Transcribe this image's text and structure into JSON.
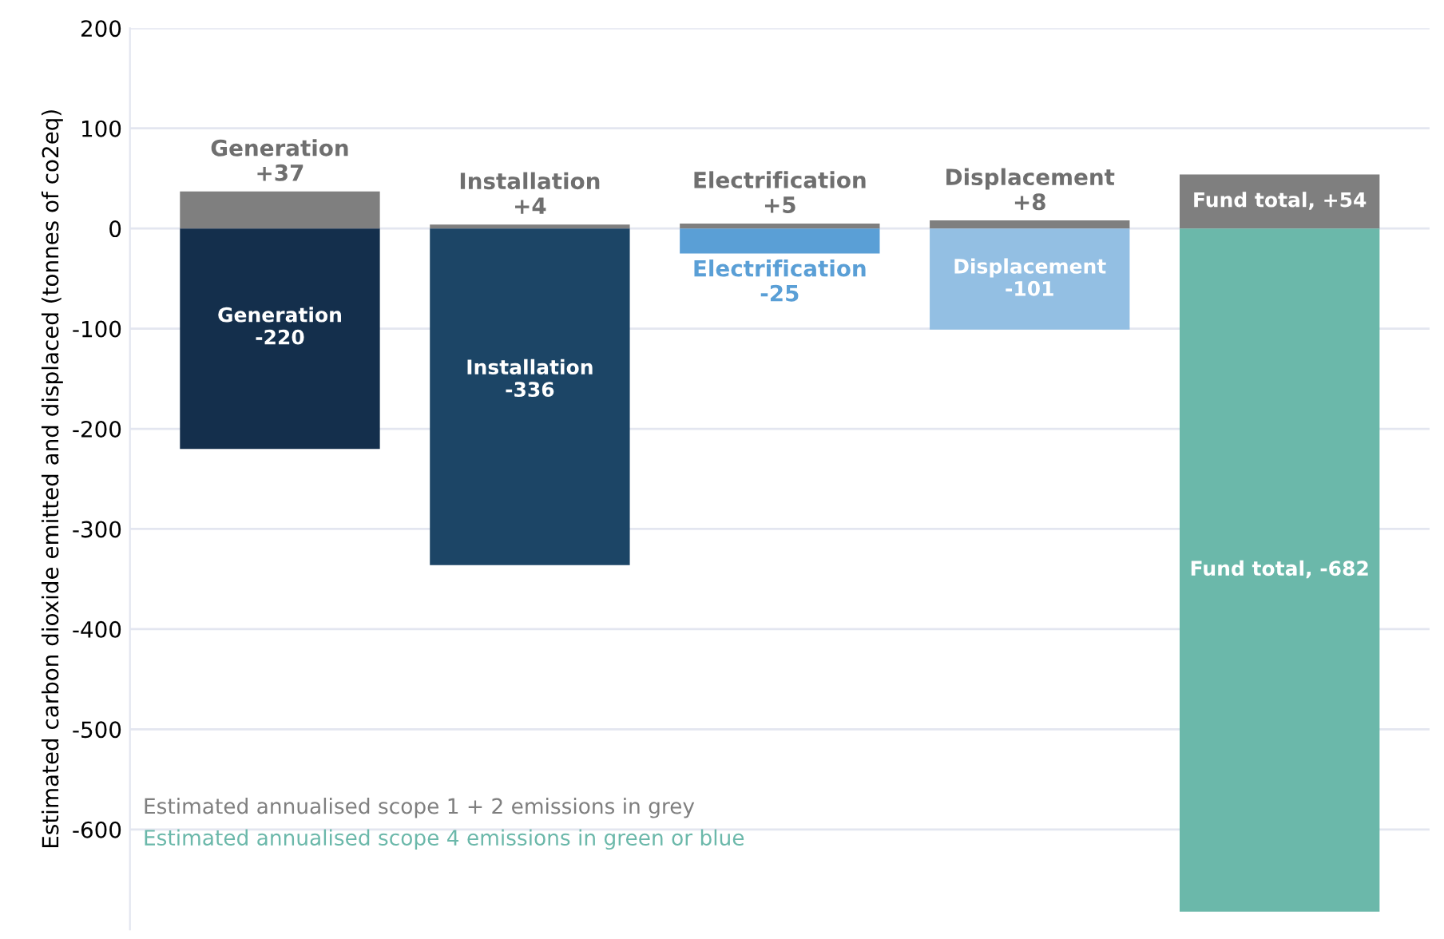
{
  "chart_data": {
    "type": "bar",
    "stacked": true,
    "ylabel": "Estimated carbon dioxide emitted and displaced (tonnes of co2eq)",
    "categories": [
      null,
      null,
      null,
      null,
      null
    ],
    "series": [
      {
        "color": "#7f7f7f",
        "values": [
          37,
          4,
          5,
          8,
          54
        ],
        "value_labels": [
          "Generation\n+37",
          "Installation\n+4",
          "Electrification\n+5",
          "Displacement\n+8",
          "Fund total, +54"
        ]
      },
      {
        "colors": [
          "#142f4c",
          "#1c4566",
          "#5a9fd6",
          "#93bfe3",
          "#6bb8aa"
        ],
        "values": [
          -220,
          -336,
          -25,
          -101,
          -682
        ],
        "value_labels": [
          "Generation\n-220",
          "Installation\n-336",
          "Electrification\n-25",
          "Displacement\n-101",
          "Fund total, -682"
        ]
      }
    ],
    "ylim": [
      -700,
      200
    ],
    "yticks": [
      200,
      100,
      0,
      -100,
      -200,
      -300,
      -400,
      -500,
      -600
    ],
    "grid": "y",
    "tick_labels": "y",
    "annotations": [
      "Estimated annualised scope 1 + 2 emissions in grey",
      "Estimated annualised scope 4 emissions in green or blue"
    ]
  }
}
